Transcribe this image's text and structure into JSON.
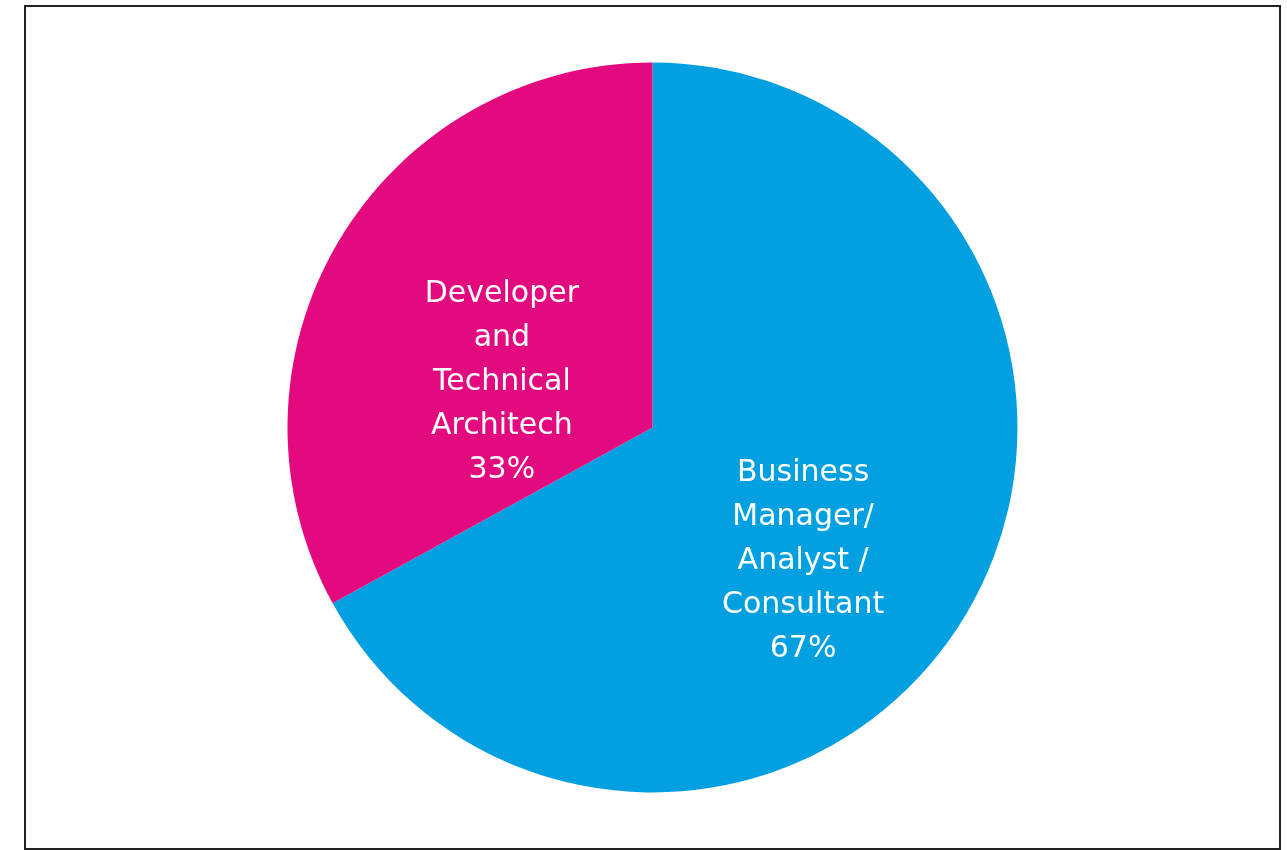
{
  "chart_data": {
    "type": "pie",
    "categories": [
      "Business\nManager/\nAnalyst /\nConsultant",
      "Developer\nand\nTechnical\nArchitech"
    ],
    "values": [
      67,
      33
    ],
    "colors": [
      "#02a0e0",
      "#e20a7e"
    ],
    "value_labels": [
      "67%",
      "33%"
    ],
    "legend": false
  }
}
